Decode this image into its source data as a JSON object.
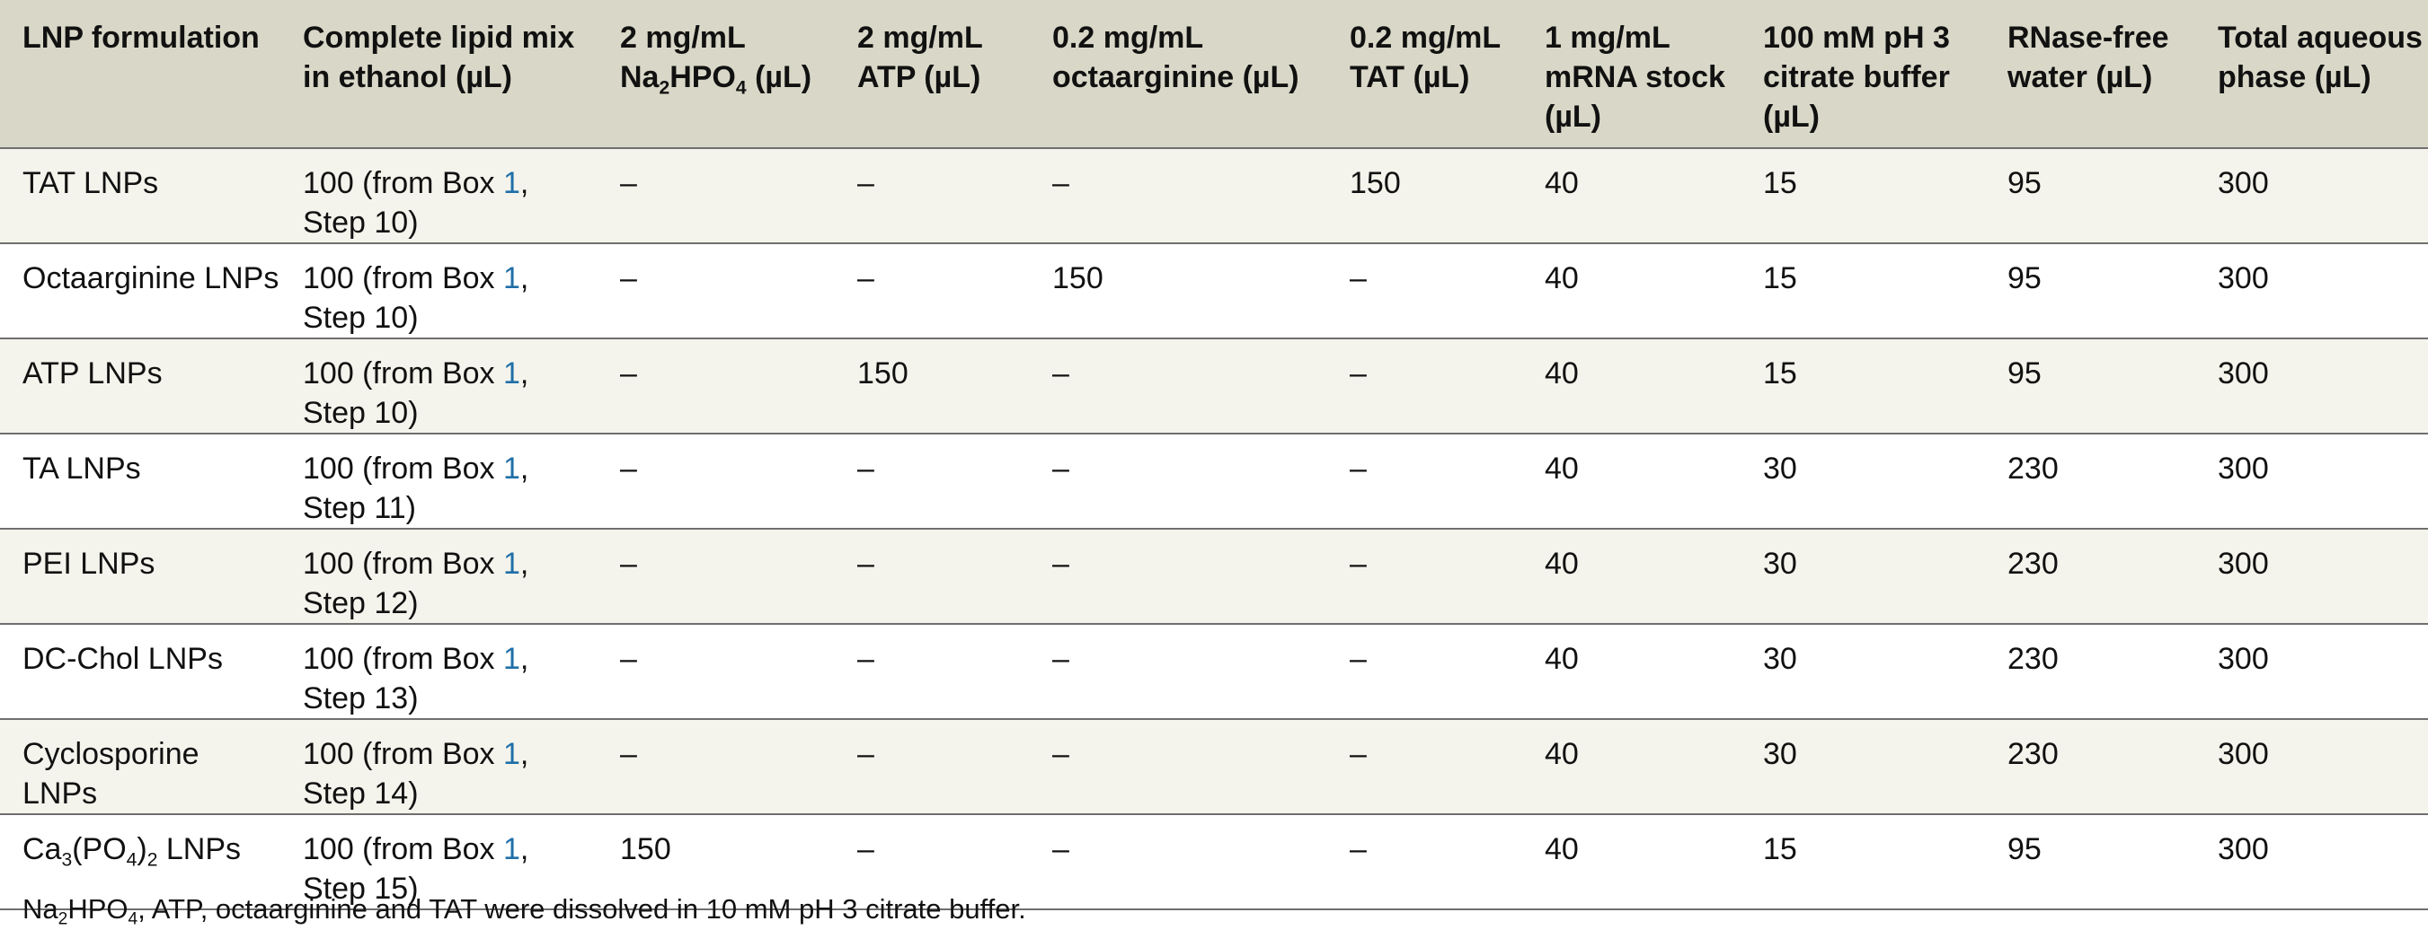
{
  "headers": [
    {
      "text": "LNP formulation"
    },
    {
      "text": "Complete lipid mix in ethanol (µL)"
    },
    {
      "pre": "2 mg/mL Na",
      "sub1": "2",
      "mid": "HPO",
      "sub2": "4",
      "post": " (µL)"
    },
    {
      "text": "2 mg/mL ATP (µL)"
    },
    {
      "text": "0.2 mg/mL octaarginine (µL)"
    },
    {
      "text": "0.2 mg/mL TAT (µL)"
    },
    {
      "text": "1 mg/mL mRNA stock (µL)"
    },
    {
      "text": "100 mM pH 3 citrate buffer (µL)"
    },
    {
      "text": "RNase-free water (µL)"
    },
    {
      "text": "Total aqueous phase (µL)"
    }
  ],
  "rows": [
    {
      "name": "TAT LNPs",
      "lipid_pre": "100 (from Box ",
      "box": "1",
      "lipid_post": ", Step 10)",
      "na2hpo4": "–",
      "atp": "–",
      "octaarginine": "–",
      "tat": "150",
      "mrna": "40",
      "citrate": "15",
      "water": "95",
      "total": "300"
    },
    {
      "name": "Octaarginine LNPs",
      "lipid_pre": "100 (from Box ",
      "box": "1",
      "lipid_post": ", Step 10)",
      "na2hpo4": "–",
      "atp": "–",
      "octaarginine": "150",
      "tat": "–",
      "mrna": "40",
      "citrate": "15",
      "water": "95",
      "total": "300"
    },
    {
      "name": "ATP LNPs",
      "lipid_pre": "100 (from Box ",
      "box": "1",
      "lipid_post": ", Step 10)",
      "na2hpo4": "–",
      "atp": "150",
      "octaarginine": "–",
      "tat": "–",
      "mrna": "40",
      "citrate": "15",
      "water": "95",
      "total": "300"
    },
    {
      "name": "TA LNPs",
      "lipid_pre": "100 (from Box ",
      "box": "1",
      "lipid_post": ", Step 11)",
      "na2hpo4": "–",
      "atp": "–",
      "octaarginine": "–",
      "tat": "–",
      "mrna": "40",
      "citrate": "30",
      "water": "230",
      "total": "300"
    },
    {
      "name": "PEI LNPs",
      "lipid_pre": "100 (from Box ",
      "box": "1",
      "lipid_post": ", Step 12)",
      "na2hpo4": "–",
      "atp": "–",
      "octaarginine": "–",
      "tat": "–",
      "mrna": "40",
      "citrate": "30",
      "water": "230",
      "total": "300"
    },
    {
      "name": "DC-Chol LNPs",
      "lipid_pre": "100 (from Box ",
      "box": "1",
      "lipid_post": ", Step 13)",
      "na2hpo4": "–",
      "atp": "–",
      "octaarginine": "–",
      "tat": "–",
      "mrna": "40",
      "citrate": "30",
      "water": "230",
      "total": "300"
    },
    {
      "name": "Cyclosporine LNPs",
      "lipid_pre": "100 (from Box ",
      "box": "1",
      "lipid_post": ", Step 14)",
      "na2hpo4": "–",
      "atp": "–",
      "octaarginine": "–",
      "tat": "–",
      "mrna": "40",
      "citrate": "30",
      "water": "230",
      "total": "300"
    },
    {
      "name_pre": "Ca",
      "name_sub1": "3",
      "name_mid": "(PO",
      "name_sub2": "4",
      "name_mid2": ")",
      "name_sub3": "2",
      "name_post": " LNPs",
      "lipid_pre": "100 (from Box ",
      "box": "1",
      "lipid_post": ", Step 15)",
      "na2hpo4": "150",
      "atp": "–",
      "octaarginine": "–",
      "tat": "–",
      "mrna": "40",
      "citrate": "15",
      "water": "95",
      "total": "300"
    }
  ],
  "footnote": {
    "pre": "Na",
    "sub1": "2",
    "mid": "HPO",
    "sub2": "4",
    "post": ", ATP, octaarginine and TAT were dissolved in 10 mM pH 3 citrate buffer."
  },
  "colors": {
    "header_bg": "#d9d8c8",
    "row_shade": "#f4f4ec",
    "link": "#1f6fa8",
    "rule": "#6f6f6f"
  }
}
